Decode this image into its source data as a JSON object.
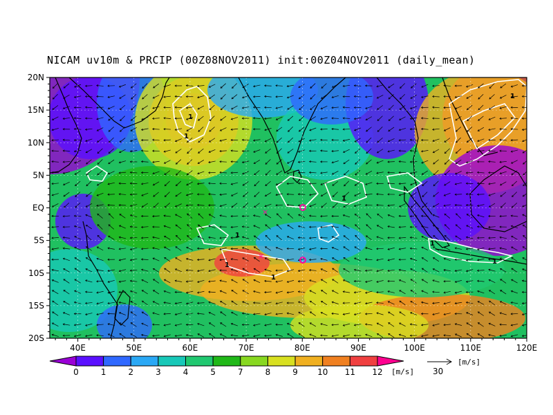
{
  "title": "NICAM uv10m & PRCIP (00Z08NOV2011) init:00Z04NOV2011 (daily_mean)",
  "map": {
    "lat_labels": [
      "20N",
      "15N",
      "10N",
      "5N",
      "EQ",
      "5S",
      "10S",
      "15S",
      "20S"
    ],
    "lon_labels": [
      "40E",
      "50E",
      "60E",
      "70E",
      "80E",
      "90E",
      "100E",
      "110E",
      "120E"
    ],
    "lon_range": [
      35,
      120
    ],
    "lat_range": [
      -20,
      20
    ],
    "grid": true,
    "vector_field": "wind vectors (uv10m)",
    "precip_contours": "white contours"
  },
  "colorbar": {
    "ticks": [
      "0",
      "1",
      "2",
      "3",
      "4",
      "5",
      "7",
      "8",
      "9",
      "10",
      "11",
      "12"
    ],
    "colors": [
      "#9a00d6",
      "#5a10ff",
      "#2f68ff",
      "#2aa8f5",
      "#18c8b8",
      "#20c870",
      "#20b818",
      "#88d820",
      "#d8e020",
      "#f0b020",
      "#f08020",
      "#f04040",
      "#ff0090"
    ],
    "unit": "[m/s]"
  },
  "reference_vector": {
    "value": "30",
    "unit": "[m/s]"
  }
}
